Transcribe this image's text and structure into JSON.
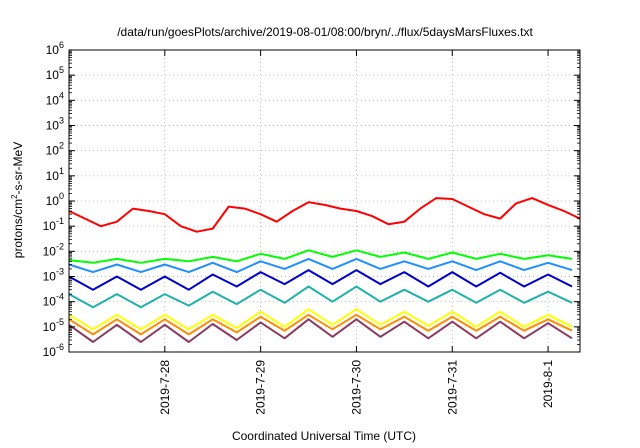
{
  "chart_data": {
    "type": "line",
    "title": "/data/run/goesPlots/archive/2019-08-01/08:00/bryn/../flux/5daysMarsFluxes.txt",
    "xlabel": "Coordinated Universal Time (UTC)",
    "ylabel_main": "protons/cm",
    "ylabel_sup": "2",
    "ylabel_tail": "-s-sr-MeV",
    "y_scale": "log",
    "ylim": [
      1e-06,
      1000000.0
    ],
    "xlim": [
      "2019-07-27 00:00",
      "2019-08-01 08:00"
    ],
    "grid": true,
    "y_ticks": [
      {
        "value": 1e-06,
        "base": "10",
        "exp": "-6"
      },
      {
        "value": 1e-05,
        "base": "10",
        "exp": "-5"
      },
      {
        "value": 0.0001,
        "base": "10",
        "exp": "-4"
      },
      {
        "value": 0.001,
        "base": "10",
        "exp": "-3"
      },
      {
        "value": 0.01,
        "base": "10",
        "exp": "-2"
      },
      {
        "value": 0.1,
        "base": "10",
        "exp": "-1"
      },
      {
        "value": 1.0,
        "base": "10",
        "exp": "0"
      },
      {
        "value": 10.0,
        "base": "10",
        "exp": "1"
      },
      {
        "value": 100.0,
        "base": "10",
        "exp": "2"
      },
      {
        "value": 1000.0,
        "base": "10",
        "exp": "3"
      },
      {
        "value": 10000.0,
        "base": "10",
        "exp": "4"
      },
      {
        "value": 100000.0,
        "base": "10",
        "exp": "5"
      },
      {
        "value": 1000000.0,
        "base": "10",
        "exp": "6"
      }
    ],
    "x_ticks": [
      {
        "value": "2019-07-28 00:00",
        "label": "2019-7-28"
      },
      {
        "value": "2019-07-29 00:00",
        "label": "2019-7-29"
      },
      {
        "value": "2019-07-30 00:00",
        "label": "2019-7-30"
      },
      {
        "value": "2019-07-31 00:00",
        "label": "2019-7-31"
      },
      {
        "value": "2019-08-01 00:00",
        "label": "2019-8-1"
      }
    ],
    "series": [
      {
        "color": "#ff0000",
        "x": [
          "2019-07-27 00:00",
          "2019-07-27 04:00",
          "2019-07-27 08:00",
          "2019-07-27 12:00",
          "2019-07-27 16:00",
          "2019-07-27 20:00",
          "2019-07-28 00:00",
          "2019-07-28 04:00",
          "2019-07-28 08:00",
          "2019-07-28 12:00",
          "2019-07-28 16:00",
          "2019-07-28 20:00",
          "2019-07-29 00:00",
          "2019-07-29 04:00",
          "2019-07-29 08:00",
          "2019-07-29 12:00",
          "2019-07-29 16:00",
          "2019-07-29 20:00",
          "2019-07-30 00:00",
          "2019-07-30 04:00",
          "2019-07-30 08:00",
          "2019-07-30 12:00",
          "2019-07-30 16:00",
          "2019-07-30 20:00",
          "2019-07-31 00:00",
          "2019-07-31 04:00",
          "2019-07-31 08:00",
          "2019-07-31 12:00",
          "2019-07-31 16:00",
          "2019-07-31 20:00",
          "2019-08-01 00:00",
          "2019-08-01 04:00",
          "2019-08-01 08:00"
        ],
        "y": [
          0.4,
          0.2,
          0.1,
          0.15,
          0.5,
          0.4,
          0.3,
          0.1,
          0.06,
          0.08,
          0.6,
          0.5,
          0.3,
          0.15,
          0.4,
          0.9,
          0.7,
          0.5,
          0.4,
          0.25,
          0.12,
          0.15,
          0.5,
          1.3,
          1.2,
          0.6,
          0.3,
          0.2,
          0.8,
          1.3,
          0.7,
          0.4,
          0.2
        ]
      },
      {
        "color": "#00ff00",
        "x": [
          "2019-07-27 00:00",
          "2019-07-27 06:00",
          "2019-07-27 12:00",
          "2019-07-27 18:00",
          "2019-07-28 00:00",
          "2019-07-28 06:00",
          "2019-07-28 12:00",
          "2019-07-28 18:00",
          "2019-07-29 00:00",
          "2019-07-29 06:00",
          "2019-07-29 12:00",
          "2019-07-29 18:00",
          "2019-07-30 00:00",
          "2019-07-30 06:00",
          "2019-07-30 12:00",
          "2019-07-30 18:00",
          "2019-07-31 00:00",
          "2019-07-31 06:00",
          "2019-07-31 12:00",
          "2019-07-31 18:00",
          "2019-08-01 00:00",
          "2019-08-01 06:00"
        ],
        "y": [
          0.0045,
          0.0035,
          0.005,
          0.0035,
          0.005,
          0.004,
          0.006,
          0.004,
          0.008,
          0.005,
          0.011,
          0.006,
          0.011,
          0.006,
          0.009,
          0.005,
          0.009,
          0.005,
          0.008,
          0.005,
          0.007,
          0.005
        ]
      },
      {
        "color": "#1e90ff",
        "x": [
          "2019-07-27 00:00",
          "2019-07-27 06:00",
          "2019-07-27 12:00",
          "2019-07-27 18:00",
          "2019-07-28 00:00",
          "2019-07-28 06:00",
          "2019-07-28 12:00",
          "2019-07-28 18:00",
          "2019-07-29 00:00",
          "2019-07-29 06:00",
          "2019-07-29 12:00",
          "2019-07-29 18:00",
          "2019-07-30 00:00",
          "2019-07-30 06:00",
          "2019-07-30 12:00",
          "2019-07-30 18:00",
          "2019-07-31 00:00",
          "2019-07-31 06:00",
          "2019-07-31 12:00",
          "2019-07-31 18:00",
          "2019-08-01 00:00",
          "2019-08-01 06:00"
        ],
        "y": [
          0.003,
          0.0015,
          0.003,
          0.0015,
          0.003,
          0.0015,
          0.0035,
          0.0015,
          0.004,
          0.002,
          0.005,
          0.002,
          0.005,
          0.002,
          0.004,
          0.002,
          0.004,
          0.0018,
          0.004,
          0.0018,
          0.0035,
          0.0018
        ]
      },
      {
        "color": "#0000cd",
        "x": [
          "2019-07-27 00:00",
          "2019-07-27 06:00",
          "2019-07-27 12:00",
          "2019-07-27 18:00",
          "2019-07-28 00:00",
          "2019-07-28 06:00",
          "2019-07-28 12:00",
          "2019-07-28 18:00",
          "2019-07-29 00:00",
          "2019-07-29 06:00",
          "2019-07-29 12:00",
          "2019-07-29 18:00",
          "2019-07-30 00:00",
          "2019-07-30 06:00",
          "2019-07-30 12:00",
          "2019-07-30 18:00",
          "2019-07-31 00:00",
          "2019-07-31 06:00",
          "2019-07-31 12:00",
          "2019-07-31 18:00",
          "2019-08-01 00:00",
          "2019-08-01 06:00"
        ],
        "y": [
          0.001,
          0.0003,
          0.001,
          0.0003,
          0.001,
          0.0003,
          0.0012,
          0.0004,
          0.0015,
          0.0005,
          0.0018,
          0.0005,
          0.0018,
          0.0005,
          0.0015,
          0.0004,
          0.0015,
          0.0004,
          0.0014,
          0.0004,
          0.0012,
          0.0004
        ]
      },
      {
        "color": "#20b2aa",
        "x": [
          "2019-07-27 00:00",
          "2019-07-27 06:00",
          "2019-07-27 12:00",
          "2019-07-27 18:00",
          "2019-07-28 00:00",
          "2019-07-28 06:00",
          "2019-07-28 12:00",
          "2019-07-28 18:00",
          "2019-07-29 00:00",
          "2019-07-29 06:00",
          "2019-07-29 12:00",
          "2019-07-29 18:00",
          "2019-07-30 00:00",
          "2019-07-30 06:00",
          "2019-07-30 12:00",
          "2019-07-30 18:00",
          "2019-07-31 00:00",
          "2019-07-31 06:00",
          "2019-07-31 12:00",
          "2019-07-31 18:00",
          "2019-08-01 00:00",
          "2019-08-01 06:00"
        ],
        "y": [
          0.0002,
          6e-05,
          0.0002,
          6e-05,
          0.0002,
          7e-05,
          0.00025,
          8e-05,
          0.0003,
          9e-05,
          0.0004,
          0.0001,
          0.0004,
          0.0001,
          0.0003,
          0.0001,
          0.0003,
          9e-05,
          0.0003,
          9e-05,
          0.00025,
          9e-05
        ]
      },
      {
        "color": "#ffff00",
        "x": [
          "2019-07-27 00:00",
          "2019-07-27 06:00",
          "2019-07-27 12:00",
          "2019-07-27 18:00",
          "2019-07-28 00:00",
          "2019-07-28 06:00",
          "2019-07-28 12:00",
          "2019-07-28 18:00",
          "2019-07-29 00:00",
          "2019-07-29 06:00",
          "2019-07-29 12:00",
          "2019-07-29 18:00",
          "2019-07-30 00:00",
          "2019-07-30 06:00",
          "2019-07-30 12:00",
          "2019-07-30 18:00",
          "2019-07-31 00:00",
          "2019-07-31 06:00",
          "2019-07-31 12:00",
          "2019-07-31 18:00",
          "2019-08-01 00:00",
          "2019-08-01 06:00"
        ],
        "y": [
          3e-05,
          8e-06,
          3e-05,
          8e-06,
          3e-05,
          8e-06,
          3e-05,
          9e-06,
          4e-05,
          1e-05,
          5e-05,
          1.2e-05,
          5e-05,
          1.2e-05,
          4e-05,
          1.1e-05,
          4e-05,
          1e-05,
          4e-05,
          1e-05,
          3e-05,
          1e-05
        ]
      },
      {
        "color": "#ff8c00",
        "x": [
          "2019-07-27 00:00",
          "2019-07-27 06:00",
          "2019-07-27 12:00",
          "2019-07-27 18:00",
          "2019-07-28 00:00",
          "2019-07-28 06:00",
          "2019-07-28 12:00",
          "2019-07-28 18:00",
          "2019-07-29 00:00",
          "2019-07-29 06:00",
          "2019-07-29 12:00",
          "2019-07-29 18:00",
          "2019-07-30 00:00",
          "2019-07-30 06:00",
          "2019-07-30 12:00",
          "2019-07-30 18:00",
          "2019-07-31 00:00",
          "2019-07-31 06:00",
          "2019-07-31 12:00",
          "2019-07-31 18:00",
          "2019-08-01 00:00",
          "2019-08-01 06:00"
        ],
        "y": [
          2e-05,
          5e-06,
          2e-05,
          5e-06,
          2e-05,
          5e-06,
          2e-05,
          6e-06,
          2.5e-05,
          7e-06,
          3e-05,
          8e-06,
          3e-05,
          8e-06,
          2.5e-05,
          7e-06,
          2.5e-05,
          7e-06,
          2.5e-05,
          7e-06,
          2e-05,
          7e-06
        ]
      },
      {
        "color": "#8b3a62",
        "x": [
          "2019-07-27 00:00",
          "2019-07-27 06:00",
          "2019-07-27 12:00",
          "2019-07-27 18:00",
          "2019-07-28 00:00",
          "2019-07-28 06:00",
          "2019-07-28 12:00",
          "2019-07-28 18:00",
          "2019-07-29 00:00",
          "2019-07-29 06:00",
          "2019-07-29 12:00",
          "2019-07-29 18:00",
          "2019-07-30 00:00",
          "2019-07-30 06:00",
          "2019-07-30 12:00",
          "2019-07-30 18:00",
          "2019-07-31 00:00",
          "2019-07-31 06:00",
          "2019-07-31 12:00",
          "2019-07-31 18:00",
          "2019-08-01 00:00",
          "2019-08-01 06:00"
        ],
        "y": [
          1.2e-05,
          2.5e-06,
          1.2e-05,
          2.5e-06,
          1.2e-05,
          2.5e-06,
          1.3e-05,
          3e-06,
          1.5e-05,
          3.5e-06,
          2e-05,
          4e-06,
          2e-05,
          4e-06,
          1.6e-05,
          3.5e-06,
          1.6e-05,
          3.5e-06,
          1.6e-05,
          3.5e-06,
          1.4e-05,
          3.5e-06
        ]
      }
    ]
  }
}
